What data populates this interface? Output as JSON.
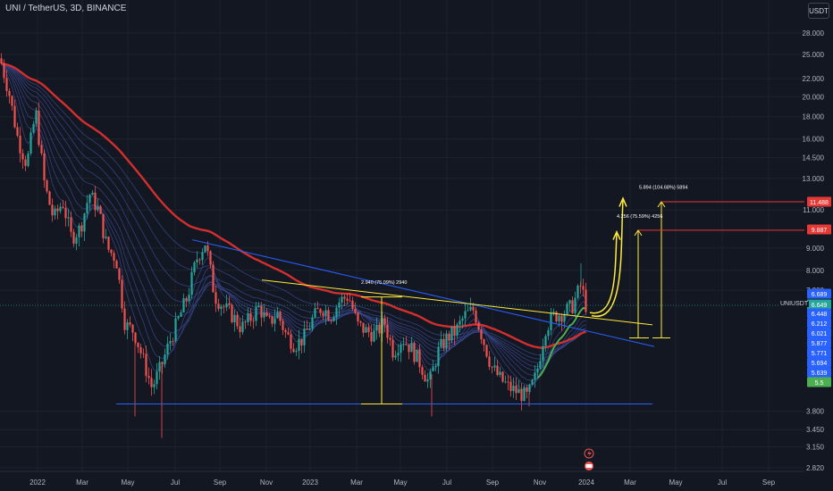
{
  "header": {
    "title": "UNI / TetherUS, 3D, BINANCE"
  },
  "currency": "USDT",
  "symbol_tag": "UNIUSDT",
  "colors": {
    "background": "#131722",
    "grid": "#1e222d",
    "axis_text": "#b2b5be",
    "up": "#26a69a",
    "down": "#ef5350",
    "ma_red": "#d32f2f",
    "ma_green": "#4caf50",
    "trend_blue": "#2962ff",
    "trend_yellow": "#ffeb3b",
    "target_red": "#e53935"
  },
  "chart_data": {
    "type": "candlestick",
    "y_scale": "log",
    "ylim": [
      2.75,
      30
    ],
    "y_ticks": [
      "28.000",
      "25.000",
      "22.000",
      "20.000",
      "18.000",
      "16.000",
      "14.500",
      "13.000",
      "11.000",
      "9.000",
      "8.000",
      "7.200",
      "3.800",
      "3.450",
      "3.150",
      "2.820"
    ],
    "x_ticks": [
      "2022",
      "Mar",
      "May",
      "Jul",
      "Sep",
      "Nov",
      "2023",
      "Mar",
      "May",
      "Jul",
      "Sep",
      "Nov",
      "2024",
      "Mar",
      "May",
      "Jul",
      "Sep"
    ],
    "price_labels": [
      {
        "text": "11.488",
        "color": "#e53935"
      },
      {
        "text": "9.887",
        "color": "#e53935"
      },
      {
        "text": "6.689",
        "color": "#2962ff"
      },
      {
        "text": "6.649",
        "color": "#26a69a"
      },
      {
        "text": "6.448",
        "color": "#2962ff"
      },
      {
        "text": "6.212",
        "color": "#2962ff"
      },
      {
        "text": "6.021",
        "color": "#2962ff"
      },
      {
        "text": "5.877",
        "color": "#2962ff"
      },
      {
        "text": "5.771",
        "color": "#2962ff"
      },
      {
        "text": "5.694",
        "color": "#2962ff"
      },
      {
        "text": "5.639",
        "color": "#2962ff"
      },
      {
        "text": "5.5",
        "color": "#4caf50"
      }
    ],
    "series": [
      {
        "name": "UNIUSDT",
        "close_path": [
          [
            0,
            24.5
          ],
          [
            10,
            20.5
          ],
          [
            20,
            16.0
          ],
          [
            30,
            14.0
          ],
          [
            40,
            18.5
          ],
          [
            50,
            12.5
          ],
          [
            60,
            10.5
          ],
          [
            70,
            11.5
          ],
          [
            80,
            9.5
          ],
          [
            90,
            10.0
          ],
          [
            100,
            12.0
          ],
          [
            110,
            11.0
          ],
          [
            120,
            9.0
          ],
          [
            130,
            8.5
          ],
          [
            140,
            6.0
          ],
          [
            150,
            5.8
          ],
          [
            160,
            5.0
          ],
          [
            170,
            4.3
          ],
          [
            180,
            4.8
          ],
          [
            190,
            5.5
          ],
          [
            200,
            6.2
          ],
          [
            210,
            7.0
          ],
          [
            220,
            8.5
          ],
          [
            230,
            9.3
          ],
          [
            240,
            7.0
          ],
          [
            250,
            6.6
          ],
          [
            260,
            6.3
          ],
          [
            270,
            5.9
          ],
          [
            280,
            6.2
          ],
          [
            290,
            6.6
          ],
          [
            300,
            6.0
          ],
          [
            310,
            6.4
          ],
          [
            320,
            5.7
          ],
          [
            330,
            5.4
          ],
          [
            340,
            5.6
          ],
          [
            350,
            6.2
          ],
          [
            360,
            6.6
          ],
          [
            370,
            6.3
          ],
          [
            380,
            6.8
          ],
          [
            390,
            7.0
          ],
          [
            400,
            6.0
          ],
          [
            410,
            5.8
          ],
          [
            420,
            5.7
          ],
          [
            430,
            6.1
          ],
          [
            440,
            5.2
          ],
          [
            450,
            5.6
          ],
          [
            460,
            5.3
          ],
          [
            470,
            4.9
          ],
          [
            480,
            4.4
          ],
          [
            490,
            5.2
          ],
          [
            500,
            5.6
          ],
          [
            510,
            5.8
          ],
          [
            520,
            6.3
          ],
          [
            530,
            6.5
          ],
          [
            540,
            5.6
          ],
          [
            550,
            4.8
          ],
          [
            560,
            4.5
          ],
          [
            570,
            4.3
          ],
          [
            580,
            4.2
          ],
          [
            590,
            4.1
          ],
          [
            600,
            4.6
          ],
          [
            610,
            5.9
          ],
          [
            620,
            6.3
          ],
          [
            630,
            6.4
          ],
          [
            640,
            6.6
          ],
          [
            650,
            7.4
          ],
          [
            656,
            6.6
          ]
        ]
      },
      {
        "name": "trend-upper-blue",
        "points": [
          [
            215,
            9.4
          ],
          [
            732,
            5.35
          ]
        ]
      },
      {
        "name": "support-blue",
        "points": [
          [
            130,
            3.95
          ],
          [
            730,
            3.95
          ]
        ]
      },
      {
        "name": "trend-yellow",
        "points": [
          [
            293,
            7.6
          ],
          [
            730,
            6.0
          ]
        ]
      }
    ],
    "annotations": [
      {
        "text": "2.940 (75.09%) 2940"
      },
      {
        "text": "4.256 (75.59%) 4256"
      },
      {
        "text": "5.894 (104.68%) 5894"
      }
    ]
  }
}
